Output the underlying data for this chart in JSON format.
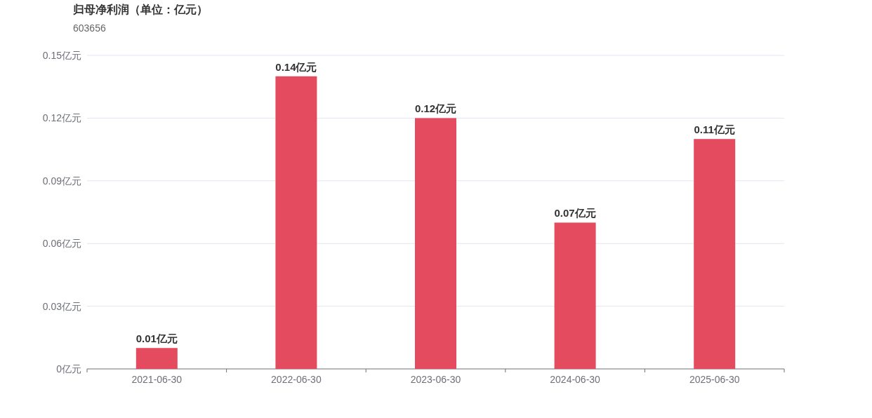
{
  "chart_data": {
    "type": "bar",
    "title": "归母净利润（单位：亿元）",
    "subtitle": "603656",
    "categories": [
      "2021-06-30",
      "2022-06-30",
      "2023-06-30",
      "2024-06-30",
      "2025-06-30"
    ],
    "series": [
      {
        "color": "#e54b5f",
        "values": [
          0.01,
          0.14,
          0.12,
          0.07,
          0.11
        ],
        "value_labels": [
          "0.01亿元",
          "0.14亿元",
          "0.12亿元",
          "0.07亿元",
          "0.11亿元"
        ]
      }
    ],
    "ylim": [
      0,
      0.15
    ],
    "yticks": [
      {
        "value": 0,
        "label": "0亿元"
      },
      {
        "value": 0.03,
        "label": "0.03亿元"
      },
      {
        "value": 0.06,
        "label": "0.06亿元"
      },
      {
        "value": 0.09,
        "label": "0.09亿元"
      },
      {
        "value": 0.12,
        "label": "0.12亿元"
      },
      {
        "value": 0.15,
        "label": "0.15亿元"
      }
    ],
    "grid": "y"
  }
}
